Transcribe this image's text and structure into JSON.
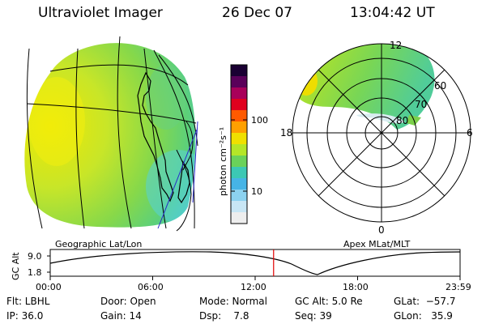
{
  "header": {
    "title": "Ultraviolet Imager",
    "date": "26 Dec 07",
    "time": "13:04:42 UT"
  },
  "colorbar": {
    "unit_label": "photon cm⁻²s⁻¹",
    "ticks": [
      "100",
      "10"
    ],
    "colors": [
      "#1a0033",
      "#5a005a",
      "#a8005a",
      "#e0001e",
      "#ff5a00",
      "#ffa000",
      "#f0e000",
      "#b4e628",
      "#6ad25a",
      "#3cc8b4",
      "#46b4e6",
      "#8cd2f0",
      "#c8e6f5",
      "#eeeeee"
    ]
  },
  "left_panel": {
    "projection_label": "Geographic Lat/Lon"
  },
  "right_panel": {
    "projection_label": "Apex MLat/MLT",
    "lat_labels": [
      "60",
      "70",
      "80"
    ],
    "mlt_labels": [
      "12",
      "18",
      "6",
      "0"
    ]
  },
  "alt_plot": {
    "ylabel": "GC Alt",
    "y_ticks": [
      "9.0",
      "1.8"
    ],
    "x_ticks": [
      "00:00",
      "06:00",
      "12:00",
      "18:00",
      "23:59"
    ],
    "current_time_fraction": 0.545
  },
  "info": {
    "flt": "Flt: LBHL",
    "ip": "IP: 36.0",
    "door": "Door: Open",
    "gain": "Gain: 14",
    "mode": "Mode: Normal",
    "dsp": "Dsp:    7.8",
    "gcalt": "GC Alt: 5.0 Re",
    "seq": "Seq: 39",
    "glat": "GLat:  −57.7",
    "glon": "GLon:   35.9"
  }
}
